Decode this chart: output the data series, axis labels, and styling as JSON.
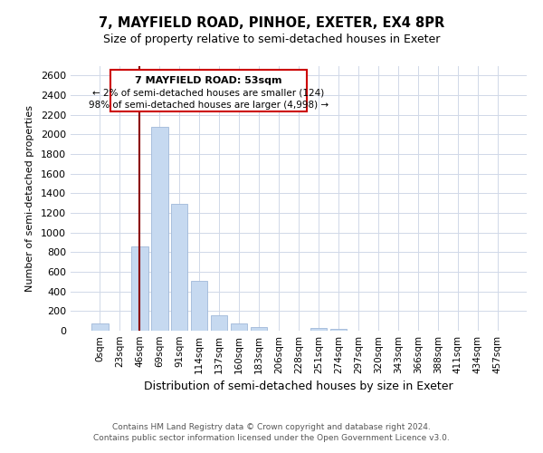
{
  "title": "7, MAYFIELD ROAD, PINHOE, EXETER, EX4 8PR",
  "subtitle": "Size of property relative to semi-detached houses in Exeter",
  "xlabel": "Distribution of semi-detached houses by size in Exeter",
  "ylabel": "Number of semi-detached properties",
  "bar_labels": [
    "0sqm",
    "23sqm",
    "46sqm",
    "69sqm",
    "91sqm",
    "114sqm",
    "137sqm",
    "160sqm",
    "183sqm",
    "206sqm",
    "228sqm",
    "251sqm",
    "274sqm",
    "297sqm",
    "320sqm",
    "343sqm",
    "366sqm",
    "388sqm",
    "411sqm",
    "434sqm",
    "457sqm"
  ],
  "bar_values": [
    75,
    0,
    860,
    2080,
    1290,
    510,
    160,
    75,
    40,
    0,
    0,
    30,
    20,
    0,
    0,
    0,
    0,
    0,
    0,
    0,
    0
  ],
  "bar_color": "#c6d9f0",
  "bar_edge_color": "#a0b8d8",
  "vline_color": "#8b0000",
  "annotation_title": "7 MAYFIELD ROAD: 53sqm",
  "annotation_line1": "← 2% of semi-detached houses are smaller (124)",
  "annotation_line2": "98% of semi-detached houses are larger (4,998) →",
  "annotation_box_edge": "#cc0000",
  "ylim": [
    0,
    2700
  ],
  "yticks": [
    0,
    200,
    400,
    600,
    800,
    1000,
    1200,
    1400,
    1600,
    1800,
    2000,
    2200,
    2400,
    2600
  ],
  "footer_line1": "Contains HM Land Registry data © Crown copyright and database right 2024.",
  "footer_line2": "Contains public sector information licensed under the Open Government Licence v3.0.",
  "bg_color": "#ffffff",
  "grid_color": "#d0d8e8"
}
